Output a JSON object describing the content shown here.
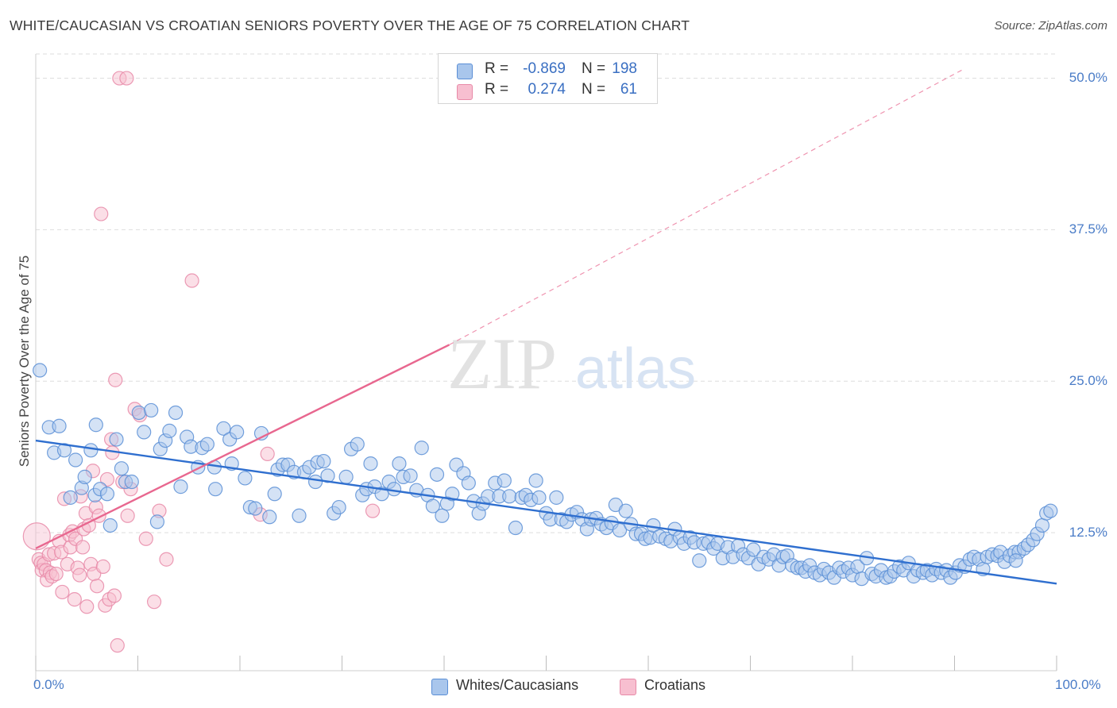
{
  "header": {
    "title": "WHITE/CAUCASIAN VS CROATIAN SENIORS POVERTY OVER THE AGE OF 75 CORRELATION CHART",
    "source": "Source: ZipAtlas.com"
  },
  "watermark": {
    "zip": "ZIP",
    "atlas": "atlas"
  },
  "stats": {
    "rows": [
      {
        "r_label": "R =",
        "r_value": "-0.869",
        "n_label": "N =",
        "n_value": "198"
      },
      {
        "r_label": "R =",
        "r_value": "0.274",
        "n_label": "N =",
        "n_value": "61"
      }
    ]
  },
  "legend": {
    "white": "Whites/Caucasians",
    "croatian": "Croatians"
  },
  "colors": {
    "white_fill": "#a9c6ec",
    "white_stroke": "#5b8fd6",
    "white_line": "#2f6fcf",
    "croat_fill": "#f7bfd0",
    "croat_stroke": "#e88aa8",
    "croat_line": "#e8678f",
    "grid": "#dedede",
    "tick_text": "#4a7cc7"
  },
  "chart_data": {
    "type": "scatter",
    "title": "WHITE/CAUCASIAN VS CROATIAN SENIORS POVERTY OVER THE AGE OF 75 CORRELATION CHART",
    "xlabel": "",
    "ylabel": "Seniors Poverty Over the Age of 75",
    "xlim": [
      0,
      100
    ],
    "ylim": [
      0,
      52
    ],
    "y_ticks": [
      12.5,
      25.0,
      37.5,
      50.0
    ],
    "y_tick_labels": [
      "12.5%",
      "25.0%",
      "37.5%",
      "50.0%"
    ],
    "x_tick_labels": [
      "0.0%",
      "100.0%"
    ],
    "grid": true,
    "legend_position": "bottom-center",
    "series": [
      {
        "name": "Whites/Caucasians",
        "R": -0.869,
        "N": 198,
        "trend": {
          "x": [
            0,
            100
          ],
          "y": [
            20.1,
            8.3
          ],
          "style": "solid"
        },
        "points": [
          [
            0.4,
            25.9
          ],
          [
            1.3,
            21.2
          ],
          [
            1.8,
            19.1
          ],
          [
            2.3,
            21.3
          ],
          [
            2.8,
            19.3
          ],
          [
            3.4,
            15.4
          ],
          [
            3.9,
            18.5
          ],
          [
            4.5,
            16.2
          ],
          [
            4.8,
            17.1
          ],
          [
            5.4,
            19.3
          ],
          [
            5.8,
            15.6
          ],
          [
            5.9,
            21.4
          ],
          [
            6.3,
            16.1
          ],
          [
            7.0,
            15.7
          ],
          [
            7.3,
            13.1
          ],
          [
            7.9,
            20.2
          ],
          [
            8.8,
            16.7
          ],
          [
            8.4,
            17.8
          ],
          [
            9.4,
            16.7
          ],
          [
            10.1,
            22.4
          ],
          [
            10.6,
            20.8
          ],
          [
            11.3,
            22.6
          ],
          [
            11.9,
            13.4
          ],
          [
            12.2,
            19.4
          ],
          [
            12.7,
            20.1
          ],
          [
            13.1,
            20.9
          ],
          [
            13.7,
            22.4
          ],
          [
            14.2,
            16.3
          ],
          [
            14.8,
            20.4
          ],
          [
            15.2,
            19.6
          ],
          [
            15.9,
            17.9
          ],
          [
            16.3,
            19.5
          ],
          [
            16.8,
            19.8
          ],
          [
            17.5,
            17.9
          ],
          [
            17.6,
            16.1
          ],
          [
            18.4,
            21.1
          ],
          [
            19.0,
            20.2
          ],
          [
            19.2,
            18.2
          ],
          [
            19.7,
            20.8
          ],
          [
            20.5,
            17.0
          ],
          [
            21.0,
            14.6
          ],
          [
            21.5,
            14.5
          ],
          [
            22.1,
            20.7
          ],
          [
            22.9,
            13.8
          ],
          [
            23.4,
            15.7
          ],
          [
            23.7,
            17.7
          ],
          [
            24.2,
            18.1
          ],
          [
            24.7,
            18.1
          ],
          [
            25.3,
            17.5
          ],
          [
            25.8,
            13.9
          ],
          [
            26.3,
            17.5
          ],
          [
            26.8,
            17.9
          ],
          [
            27.4,
            16.7
          ],
          [
            27.6,
            18.3
          ],
          [
            28.2,
            18.4
          ],
          [
            28.6,
            17.2
          ],
          [
            29.2,
            14.1
          ],
          [
            29.7,
            14.6
          ],
          [
            30.4,
            17.1
          ],
          [
            30.9,
            19.4
          ],
          [
            31.5,
            19.8
          ],
          [
            32.0,
            15.6
          ],
          [
            32.4,
            16.1
          ],
          [
            32.8,
            18.2
          ],
          [
            33.2,
            16.3
          ],
          [
            33.9,
            15.7
          ],
          [
            34.6,
            16.7
          ],
          [
            35.1,
            16.1
          ],
          [
            35.6,
            18.2
          ],
          [
            36.0,
            17.1
          ],
          [
            36.7,
            17.2
          ],
          [
            37.3,
            16.0
          ],
          [
            37.8,
            19.5
          ],
          [
            38.4,
            15.6
          ],
          [
            38.9,
            14.7
          ],
          [
            39.3,
            17.3
          ],
          [
            39.8,
            13.9
          ],
          [
            40.3,
            14.9
          ],
          [
            40.8,
            15.7
          ],
          [
            41.2,
            18.1
          ],
          [
            41.9,
            17.4
          ],
          [
            42.4,
            16.6
          ],
          [
            42.9,
            15.1
          ],
          [
            43.4,
            14.1
          ],
          [
            43.8,
            14.9
          ],
          [
            44.3,
            15.5
          ],
          [
            45.0,
            16.6
          ],
          [
            45.4,
            15.5
          ],
          [
            45.9,
            16.8
          ],
          [
            46.4,
            15.5
          ],
          [
            47.0,
            12.9
          ],
          [
            47.6,
            15.4
          ],
          [
            48.0,
            15.6
          ],
          [
            48.5,
            15.2
          ],
          [
            49.0,
            16.8
          ],
          [
            49.3,
            15.4
          ],
          [
            50.0,
            14.1
          ],
          [
            50.4,
            13.6
          ],
          [
            51.0,
            15.4
          ],
          [
            51.5,
            13.6
          ],
          [
            52.0,
            13.4
          ],
          [
            52.5,
            14.0
          ],
          [
            53.0,
            14.2
          ],
          [
            53.5,
            13.6
          ],
          [
            54.0,
            12.8
          ],
          [
            54.4,
            13.6
          ],
          [
            54.9,
            13.7
          ],
          [
            55.4,
            13.2
          ],
          [
            55.9,
            12.9
          ],
          [
            56.4,
            13.3
          ],
          [
            56.8,
            14.8
          ],
          [
            57.2,
            12.7
          ],
          [
            57.8,
            14.3
          ],
          [
            58.3,
            13.2
          ],
          [
            58.8,
            12.4
          ],
          [
            59.3,
            12.4
          ],
          [
            59.7,
            12.0
          ],
          [
            60.2,
            12.1
          ],
          [
            60.5,
            13.1
          ],
          [
            61.1,
            12.2
          ],
          [
            61.7,
            12.0
          ],
          [
            62.2,
            11.8
          ],
          [
            62.6,
            12.8
          ],
          [
            63.1,
            12.1
          ],
          [
            63.5,
            11.6
          ],
          [
            64.1,
            12.1
          ],
          [
            64.5,
            11.7
          ],
          [
            65.0,
            10.2
          ],
          [
            65.4,
            11.6
          ],
          [
            65.9,
            11.7
          ],
          [
            66.4,
            11.2
          ],
          [
            66.8,
            11.6
          ],
          [
            67.3,
            10.4
          ],
          [
            67.8,
            11.3
          ],
          [
            68.3,
            10.5
          ],
          [
            68.8,
            11.4
          ],
          [
            69.3,
            10.7
          ],
          [
            69.8,
            10.4
          ],
          [
            70.3,
            11.1
          ],
          [
            70.8,
            9.9
          ],
          [
            71.3,
            10.5
          ],
          [
            71.8,
            10.3
          ],
          [
            72.3,
            10.7
          ],
          [
            72.8,
            9.8
          ],
          [
            73.2,
            10.5
          ],
          [
            73.6,
            10.6
          ],
          [
            74.1,
            9.8
          ],
          [
            74.6,
            9.6
          ],
          [
            75.0,
            9.6
          ],
          [
            75.4,
            9.3
          ],
          [
            75.8,
            9.8
          ],
          [
            76.3,
            9.2
          ],
          [
            76.8,
            9.0
          ],
          [
            77.2,
            9.5
          ],
          [
            77.7,
            9.2
          ],
          [
            78.2,
            8.8
          ],
          [
            78.7,
            9.6
          ],
          [
            79.1,
            9.3
          ],
          [
            79.6,
            9.6
          ],
          [
            80.0,
            9.0
          ],
          [
            80.5,
            9.7
          ],
          [
            80.9,
            8.7
          ],
          [
            81.4,
            10.4
          ],
          [
            81.9,
            9.1
          ],
          [
            82.3,
            8.9
          ],
          [
            82.8,
            9.4
          ],
          [
            83.3,
            8.8
          ],
          [
            83.7,
            8.9
          ],
          [
            84.1,
            9.3
          ],
          [
            84.6,
            9.7
          ],
          [
            85.0,
            9.4
          ],
          [
            85.5,
            10.0
          ],
          [
            86.0,
            8.9
          ],
          [
            86.4,
            9.4
          ],
          [
            86.9,
            9.2
          ],
          [
            87.3,
            9.4
          ],
          [
            87.8,
            9.0
          ],
          [
            88.2,
            9.5
          ],
          [
            88.7,
            9.2
          ],
          [
            89.2,
            9.4
          ],
          [
            89.6,
            8.8
          ],
          [
            90.1,
            9.2
          ],
          [
            90.5,
            9.8
          ],
          [
            91.0,
            9.7
          ],
          [
            91.5,
            10.3
          ],
          [
            91.9,
            10.5
          ],
          [
            92.4,
            10.3
          ],
          [
            92.8,
            9.5
          ],
          [
            93.2,
            10.5
          ],
          [
            93.7,
            10.7
          ],
          [
            94.2,
            10.6
          ],
          [
            94.5,
            10.9
          ],
          [
            94.9,
            10.1
          ],
          [
            95.4,
            10.6
          ],
          [
            95.9,
            10.9
          ],
          [
            96.3,
            10.9
          ],
          [
            96.8,
            11.2
          ],
          [
            97.2,
            11.5
          ],
          [
            97.7,
            11.9
          ],
          [
            98.1,
            12.4
          ],
          [
            98.6,
            13.1
          ],
          [
            99.0,
            14.1
          ],
          [
            99.4,
            14.3
          ],
          [
            96.0,
            10.2
          ]
        ]
      },
      {
        "name": "Croatians",
        "R": 0.274,
        "N": 61,
        "trend": {
          "x": [
            0,
            40.5
          ],
          "y": [
            11.2,
            28.0
          ],
          "style": "solid",
          "extension": {
            "x": [
              40.5,
              91
            ],
            "y": [
              28.0,
              50.8
            ],
            "style": "dashed"
          }
        },
        "points": [
          [
            0.1,
            12.2
          ],
          [
            0.3,
            10.3
          ],
          [
            0.5,
            10.0
          ],
          [
            0.6,
            9.4
          ],
          [
            0.8,
            9.9
          ],
          [
            1.0,
            9.4
          ],
          [
            1.1,
            8.6
          ],
          [
            1.3,
            10.7
          ],
          [
            1.4,
            9.2
          ],
          [
            1.6,
            8.9
          ],
          [
            1.8,
            10.8
          ],
          [
            2.0,
            9.1
          ],
          [
            2.3,
            11.8
          ],
          [
            2.5,
            10.9
          ],
          [
            2.6,
            7.6
          ],
          [
            2.8,
            15.3
          ],
          [
            3.1,
            9.9
          ],
          [
            3.3,
            12.3
          ],
          [
            3.4,
            11.3
          ],
          [
            3.6,
            12.6
          ],
          [
            3.8,
            7.0
          ],
          [
            3.9,
            12.0
          ],
          [
            4.1,
            9.6
          ],
          [
            4.3,
            9.0
          ],
          [
            4.4,
            15.5
          ],
          [
            4.6,
            11.3
          ],
          [
            4.7,
            12.8
          ],
          [
            4.9,
            14.1
          ],
          [
            5.0,
            6.4
          ],
          [
            5.2,
            13.1
          ],
          [
            5.4,
            9.9
          ],
          [
            5.6,
            17.6
          ],
          [
            5.7,
            9.1
          ],
          [
            5.9,
            14.6
          ],
          [
            6.0,
            8.1
          ],
          [
            6.2,
            13.9
          ],
          [
            6.4,
            38.8
          ],
          [
            6.6,
            9.7
          ],
          [
            6.8,
            6.5
          ],
          [
            7.0,
            16.9
          ],
          [
            7.2,
            7.0
          ],
          [
            7.4,
            20.2
          ],
          [
            7.5,
            19.1
          ],
          [
            7.7,
            7.3
          ],
          [
            7.8,
            25.1
          ],
          [
            8.0,
            3.2
          ],
          [
            8.2,
            50.0
          ],
          [
            8.5,
            16.7
          ],
          [
            8.9,
            50.0
          ],
          [
            9.0,
            13.9
          ],
          [
            9.3,
            16.1
          ],
          [
            9.7,
            22.7
          ],
          [
            10.2,
            22.2
          ],
          [
            10.8,
            12.0
          ],
          [
            11.6,
            6.8
          ],
          [
            12.1,
            14.3
          ],
          [
            12.8,
            10.3
          ],
          [
            15.3,
            33.3
          ],
          [
            22.7,
            19.0
          ],
          [
            22.0,
            14.0
          ],
          [
            33.0,
            14.3
          ]
        ]
      }
    ]
  }
}
